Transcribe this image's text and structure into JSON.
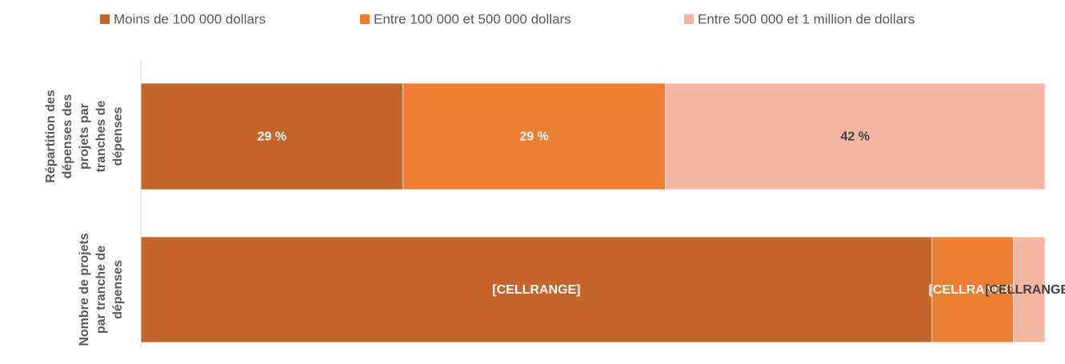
{
  "chart_data": {
    "type": "stacked_bar_horizontal",
    "categories": [
      "Répartition des dépenses des projets par tranches de dépenses",
      "Nombre de projets par tranche de dépenses"
    ],
    "series": [
      {
        "name": "Moins de 100 000 dollars",
        "color": "#c4652a",
        "label_color": "#ffffff",
        "values": [
          29,
          87.5
        ],
        "value_labels": [
          "29 %",
          "[CELLRANGE]"
        ]
      },
      {
        "name": "Entre 100 000 et 500 000 dollars",
        "color": "#ed7d31",
        "label_color": "#ffffff",
        "values": [
          29,
          9
        ],
        "value_labels": [
          "29 %",
          "[CELLRANGE]"
        ]
      },
      {
        "name": "Entre 500 000 et 1 million de dollars",
        "color": "#f4b6a0",
        "label_color": "#404040",
        "values": [
          42,
          3.5
        ],
        "value_labels": [
          "42 %",
          "[CELLRANGE]"
        ]
      }
    ],
    "xlim": [
      0,
      100
    ],
    "legend": "top"
  }
}
